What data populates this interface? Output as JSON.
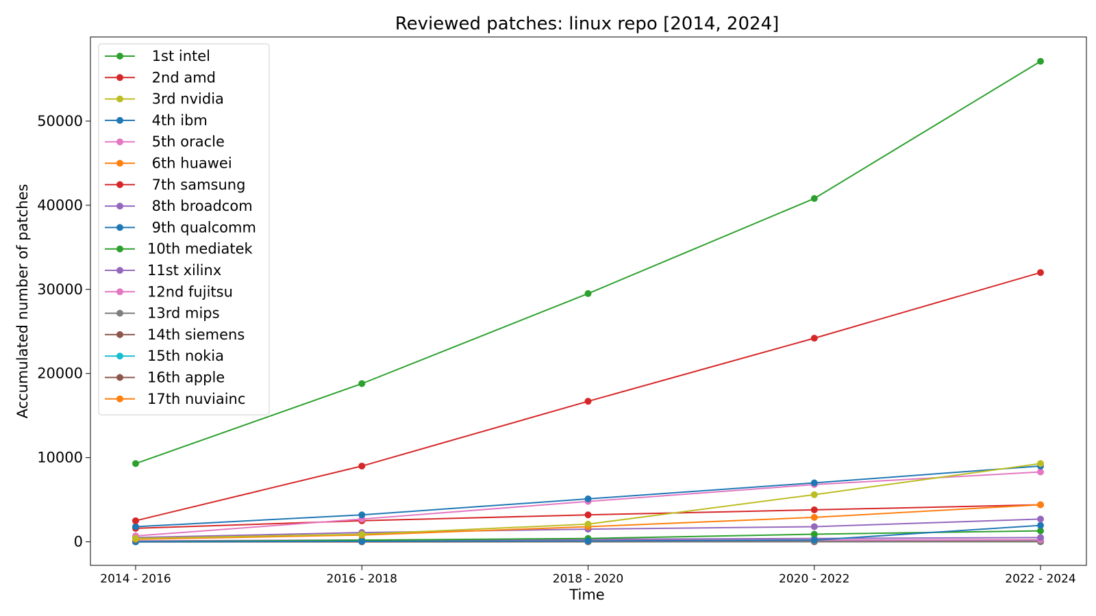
{
  "chart_data": {
    "type": "line",
    "title": "Reviewed patches: linux repo [2014, 2024]",
    "xlabel": "Time",
    "ylabel": "Accumulated number of patches",
    "categories": [
      "2014 - 2016",
      "2016 - 2018",
      "2018 - 2020",
      "2020 - 2022",
      "2022 - 2024"
    ],
    "yticks": [
      0,
      10000,
      20000,
      30000,
      40000,
      50000
    ],
    "ylim": [
      -2800,
      60000
    ],
    "grid": false,
    "legend_position": "top-left",
    "series": [
      {
        "name": " 1st intel",
        "color": "#2ca02c",
        "values": [
          9300,
          18800,
          29500,
          40800,
          57100
        ]
      },
      {
        "name": " 2nd amd",
        "color": "#d62728",
        "values": [
          2500,
          9000,
          16700,
          24200,
          32000
        ]
      },
      {
        "name": " 3rd nvidia",
        "color": "#bcbd22",
        "values": [
          400,
          900,
          2100,
          5600,
          9300
        ]
      },
      {
        "name": " 4th ibm",
        "color": "#1f77b4",
        "values": [
          1800,
          3200,
          5100,
          7000,
          9000
        ]
      },
      {
        "name": " 5th oracle",
        "color": "#e377c2",
        "values": [
          700,
          2700,
          4800,
          6800,
          8300
        ]
      },
      {
        "name": " 6th huawei",
        "color": "#ff7f0e",
        "values": [
          300,
          800,
          1800,
          2900,
          4400
        ]
      },
      {
        "name": " 7th samsung",
        "color": "#d62728",
        "values": [
          1600,
          2500,
          3200,
          3800,
          4400
        ]
      },
      {
        "name": " 8th broadcom",
        "color": "#9467bd",
        "values": [
          500,
          1100,
          1500,
          1800,
          2700
        ]
      },
      {
        "name": " 9th qualcomm",
        "color": "#1f77b4",
        "values": [
          0,
          50,
          100,
          200,
          1950
        ]
      },
      {
        "name": "10th mediatek",
        "color": "#2ca02c",
        "values": [
          0,
          200,
          400,
          900,
          1300
        ]
      },
      {
        "name": "11st xilinx",
        "color": "#9467bd",
        "values": [
          100,
          200,
          300,
          400,
          500
        ]
      },
      {
        "name": "12nd fujitsu",
        "color": "#e377c2",
        "values": [
          50,
          100,
          150,
          200,
          250
        ]
      },
      {
        "name": "13rd mips",
        "color": "#7f7f7f",
        "values": [
          50,
          60,
          70,
          80,
          90
        ]
      },
      {
        "name": "14th siemens",
        "color": "#8c564b",
        "values": [
          0,
          10,
          20,
          30,
          40
        ]
      },
      {
        "name": "15th nokia",
        "color": "#17becf",
        "values": [
          10,
          15,
          20,
          25,
          30
        ]
      },
      {
        "name": "16th apple",
        "color": "#8c564b",
        "values": [
          0,
          0,
          5,
          10,
          20
        ]
      },
      {
        "name": "17th nuviainc",
        "color": "#ff7f0e",
        "values": [
          0,
          0,
          0,
          5,
          10
        ]
      }
    ]
  }
}
